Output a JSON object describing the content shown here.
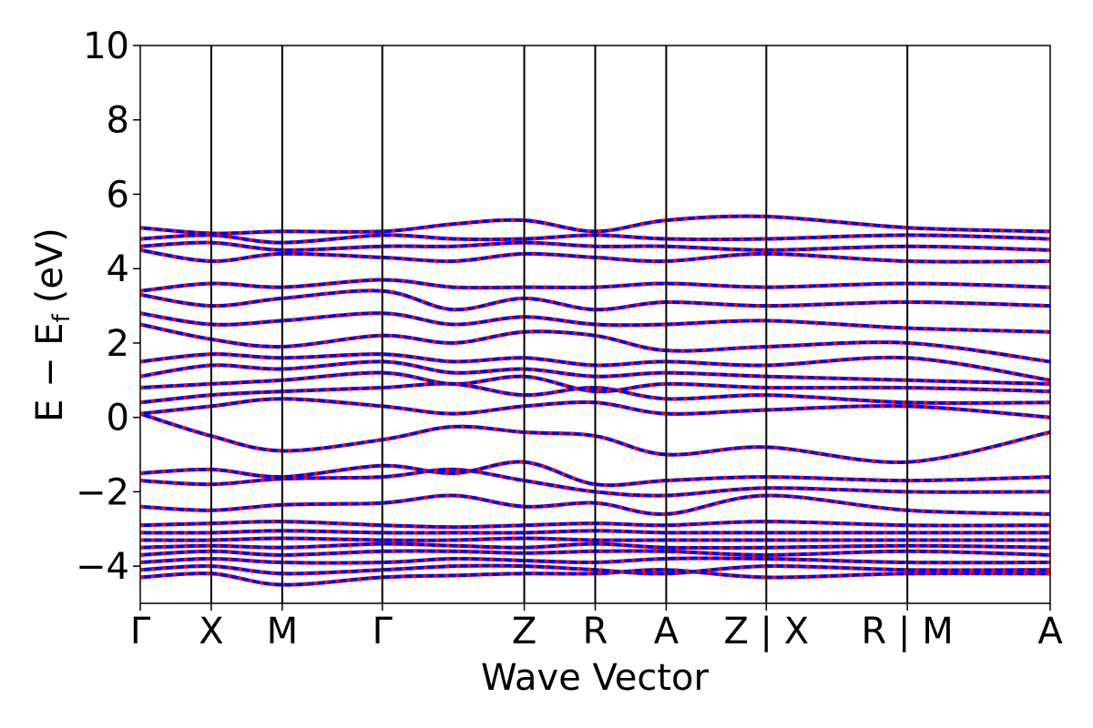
{
  "chart_data": {
    "type": "line",
    "xlabel": "Wave Vector",
    "ylabel": "E − E",
    "ylabel_sub": "f",
    "ylabel_unit": "(eV)",
    "ylim": [
      -5,
      10
    ],
    "yticks": [
      10,
      8,
      6,
      4,
      2,
      0,
      -2,
      -4
    ],
    "ytick_labels": [
      "10",
      "8",
      "6",
      "4",
      "2",
      "0",
      "−2",
      "−4"
    ],
    "xlim": [
      0,
      1
    ],
    "kpoints": [
      {
        "label": "Γ",
        "x": 0.0
      },
      {
        "label": "X",
        "x": 0.078
      },
      {
        "label": "M",
        "x": 0.156
      },
      {
        "label": "Γ",
        "x": 0.266
      },
      {
        "label": "Z",
        "x": 0.422
      },
      {
        "label": "R",
        "x": 0.5
      },
      {
        "label": "A",
        "x": 0.578
      },
      {
        "label": "Z | X",
        "x": 0.688
      },
      {
        "label": "R | M",
        "x": 0.843
      },
      {
        "label": "A",
        "x": 1.0
      }
    ],
    "colors": {
      "band_solid": "#0000ff",
      "band_dashed": "#ff0000",
      "vline": "#000000"
    },
    "series": [
      {
        "values": [
          -4.3,
          -4.2,
          -4.5,
          -4.3,
          -4.25,
          -4.2,
          -4.2,
          -4.1,
          -4.3,
          -4.2,
          -4.2
        ]
      },
      {
        "values": [
          -4.1,
          -4.0,
          -4.2,
          -4.1,
          -4.0,
          -4.0,
          -4.1,
          -4.2,
          -4.0,
          -4.1,
          -4.1
        ]
      },
      {
        "values": [
          -3.9,
          -3.8,
          -3.9,
          -3.9,
          -3.8,
          -3.85,
          -3.9,
          -3.8,
          -3.8,
          -3.9,
          -3.9
        ]
      },
      {
        "values": [
          -3.7,
          -3.6,
          -3.7,
          -3.6,
          -3.6,
          -3.65,
          -3.6,
          -3.6,
          -3.7,
          -3.6,
          -3.7
        ]
      },
      {
        "values": [
          -3.5,
          -3.45,
          -3.5,
          -3.4,
          -3.45,
          -3.5,
          -3.4,
          -3.5,
          -3.5,
          -3.45,
          -3.5
        ]
      },
      {
        "values": [
          -3.3,
          -3.3,
          -3.25,
          -3.3,
          -3.3,
          -3.25,
          -3.3,
          -3.3,
          -3.3,
          -3.3,
          -3.3
        ]
      },
      {
        "values": [
          -3.1,
          -3.1,
          -3.05,
          -3.1,
          -3.1,
          -3.1,
          -3.05,
          -3.1,
          -3.1,
          -3.1,
          -3.1
        ]
      },
      {
        "values": [
          -2.9,
          -2.85,
          -2.8,
          -2.9,
          -2.95,
          -2.9,
          -2.85,
          -2.9,
          -2.8,
          -2.9,
          -2.9
        ]
      },
      {
        "values": [
          -2.4,
          -2.5,
          -2.35,
          -2.3,
          -2.1,
          -2.4,
          -2.3,
          -2.6,
          -2.1,
          -2.5,
          -2.6
        ]
      },
      {
        "values": [
          -1.7,
          -1.8,
          -1.65,
          -1.6,
          -1.4,
          -1.7,
          -2.0,
          -2.1,
          -1.9,
          -2.0,
          -2.0
        ]
      },
      {
        "values": [
          -1.5,
          -1.4,
          -1.6,
          -1.3,
          -1.5,
          -1.2,
          -1.8,
          -1.7,
          -1.6,
          -1.7,
          -1.6
        ]
      },
      {
        "values": [
          0.1,
          -0.5,
          -0.9,
          -0.6,
          -0.25,
          -0.4,
          -0.5,
          -1.0,
          -0.8,
          -1.2,
          -0.4
        ]
      },
      {
        "values": [
          0.1,
          0.3,
          0.5,
          0.3,
          0.1,
          0.3,
          0.4,
          0.1,
          0.2,
          0.3,
          0.0
        ]
      },
      {
        "values": [
          0.4,
          0.6,
          0.7,
          0.8,
          0.9,
          0.6,
          0.8,
          0.5,
          0.6,
          0.4,
          0.4
        ]
      },
      {
        "values": [
          0.8,
          0.9,
          1.0,
          1.2,
          0.9,
          1.1,
          0.7,
          0.9,
          0.8,
          0.8,
          0.7
        ]
      },
      {
        "values": [
          1.1,
          1.4,
          1.3,
          1.5,
          1.2,
          1.3,
          1.1,
          1.2,
          1.1,
          1.0,
          0.9
        ]
      },
      {
        "values": [
          1.5,
          1.7,
          1.6,
          1.7,
          1.5,
          1.6,
          1.4,
          1.5,
          1.4,
          1.6,
          1.0
        ]
      },
      {
        "values": [
          2.5,
          2.1,
          1.9,
          2.2,
          2.0,
          2.3,
          2.2,
          1.8,
          1.9,
          2.0,
          1.5
        ]
      },
      {
        "values": [
          2.8,
          2.5,
          2.6,
          2.8,
          2.5,
          2.7,
          2.5,
          2.5,
          2.6,
          2.4,
          2.3
        ]
      },
      {
        "values": [
          3.3,
          3.0,
          3.2,
          3.4,
          2.9,
          3.2,
          2.9,
          3.1,
          3.0,
          3.1,
          3.0
        ]
      },
      {
        "values": [
          3.4,
          3.6,
          3.5,
          3.7,
          3.5,
          3.5,
          3.5,
          3.6,
          3.5,
          3.6,
          3.5
        ]
      },
      {
        "values": [
          4.5,
          4.2,
          4.4,
          4.3,
          4.2,
          4.4,
          4.3,
          4.2,
          4.4,
          4.2,
          4.2
        ]
      },
      {
        "values": [
          4.6,
          4.7,
          4.5,
          4.6,
          4.6,
          4.7,
          4.6,
          4.6,
          4.5,
          4.6,
          4.5
        ]
      },
      {
        "values": [
          4.8,
          4.9,
          4.7,
          4.9,
          4.8,
          4.8,
          4.9,
          4.8,
          4.8,
          4.9,
          4.8
        ]
      },
      {
        "values": [
          5.1,
          4.95,
          5.0,
          5.0,
          5.2,
          5.3,
          5.0,
          5.3,
          5.4,
          5.1,
          5.0
        ]
      }
    ]
  }
}
